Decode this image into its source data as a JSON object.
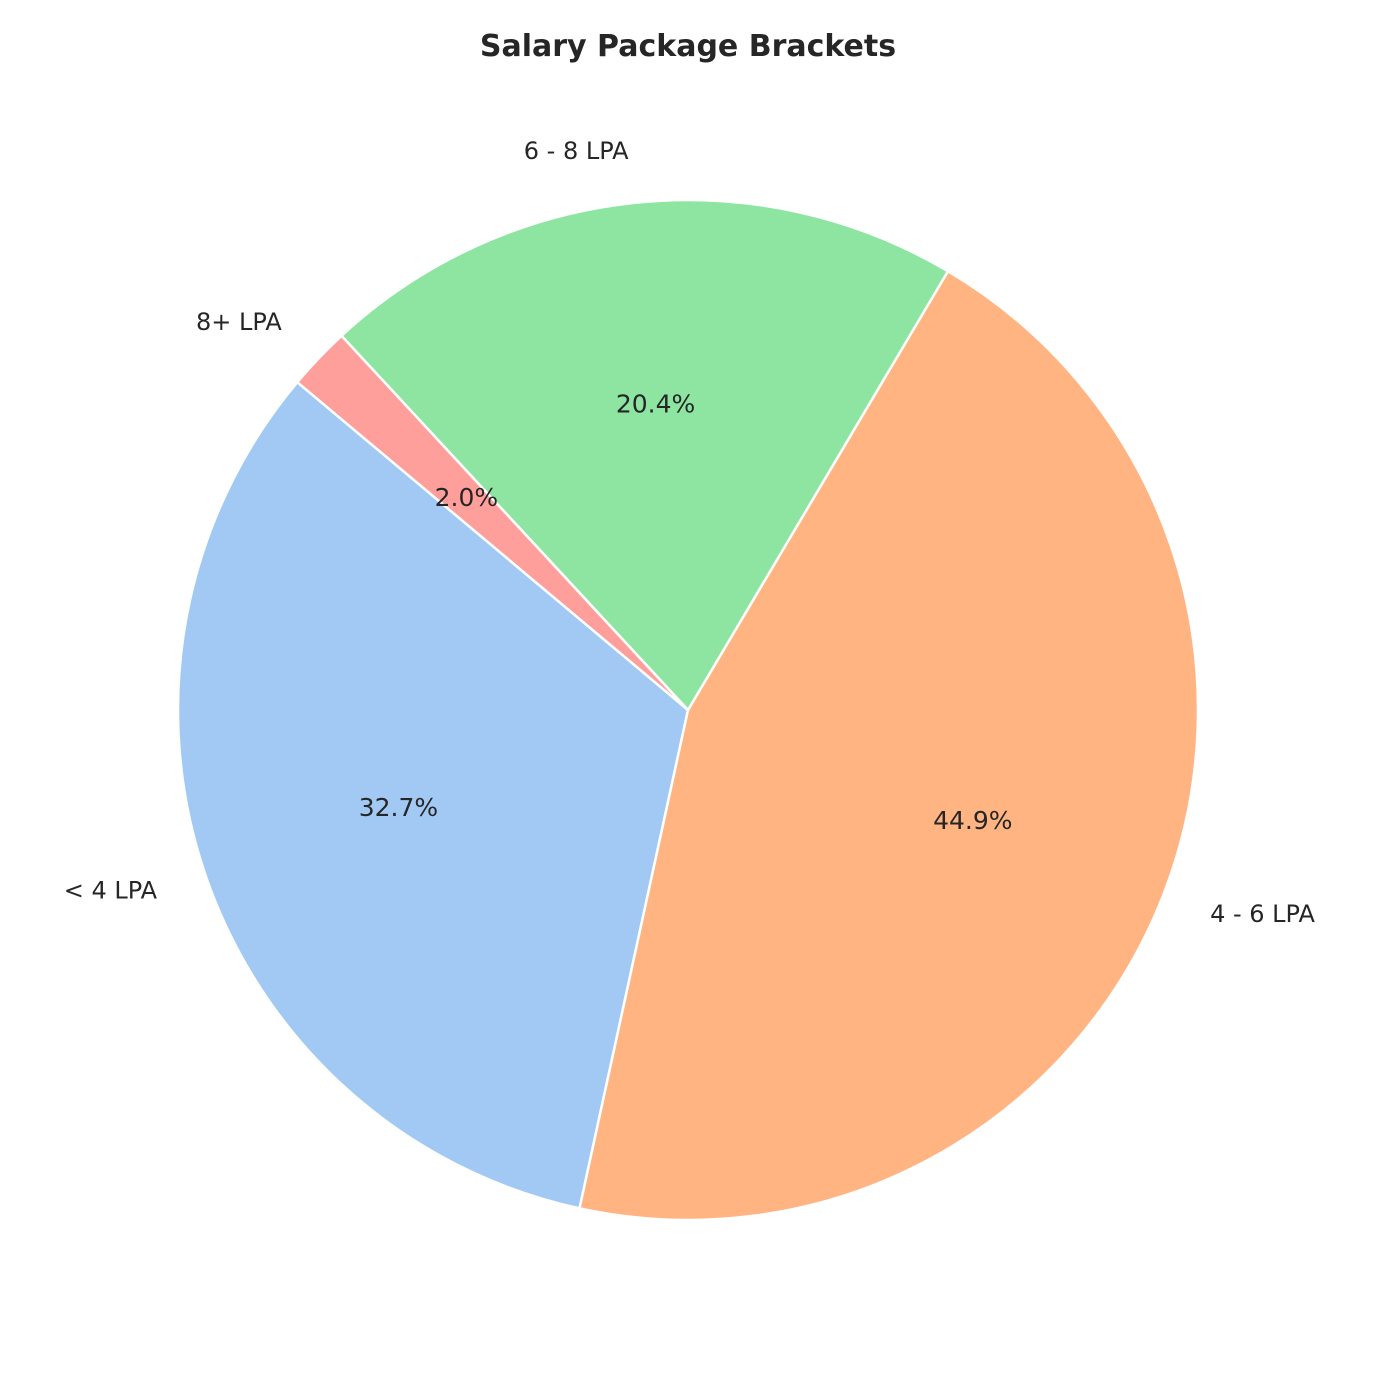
{
  "chart_data": {
    "type": "pie",
    "title": "Salary Package Brackets",
    "slices": [
      {
        "label": "< 4 LPA",
        "value": 32.7,
        "pct_label": "32.7%",
        "color": "#a1c9f4"
      },
      {
        "label": "4 - 6 LPA",
        "value": 44.9,
        "pct_label": "44.9%",
        "color": "#ffb482"
      },
      {
        "label": "6 - 8 LPA",
        "value": 20.4,
        "pct_label": "20.4%",
        "color": "#8de5a1"
      },
      {
        "label": "8+ LPA",
        "value": 2.0,
        "pct_label": "2.0%",
        "color": "#ff9f9b"
      }
    ],
    "start_angle_deg": 140,
    "direction": "counterclockwise",
    "legend": "none"
  }
}
